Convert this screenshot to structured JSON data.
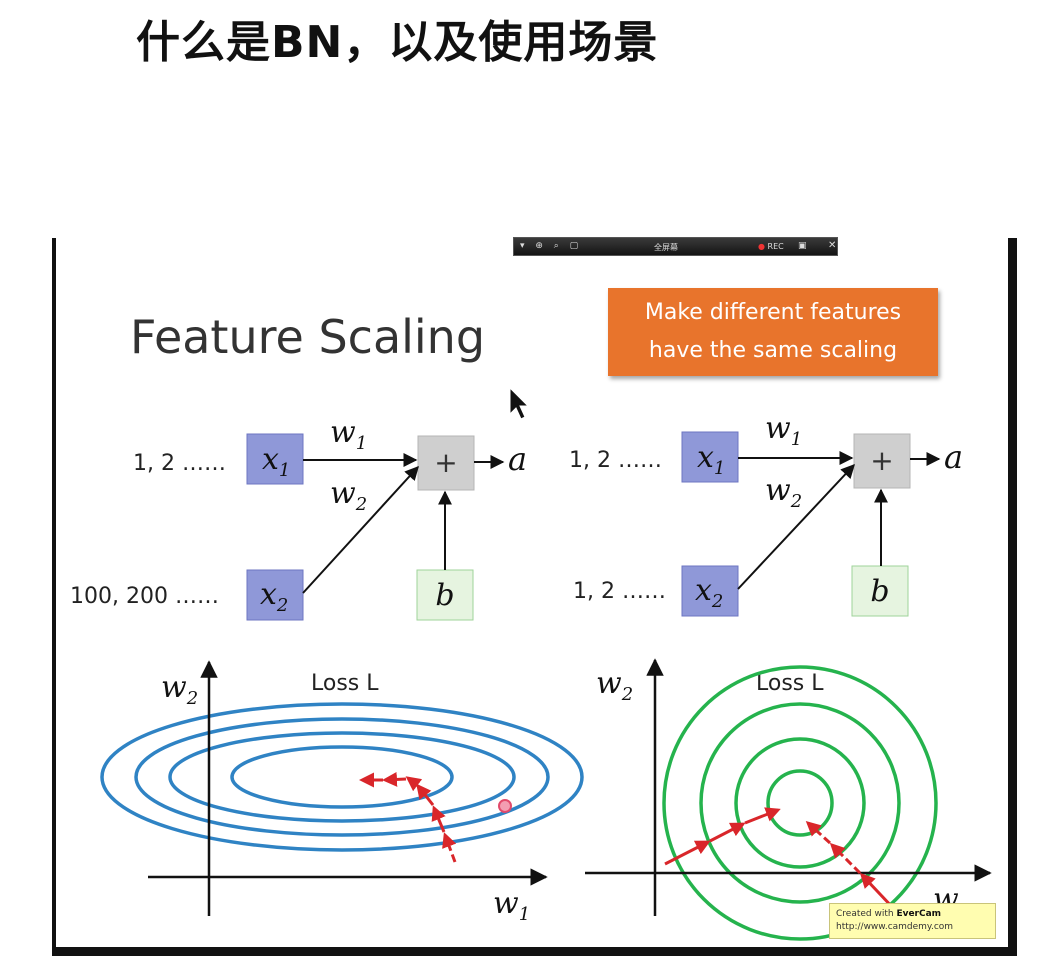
{
  "page": {
    "title": "什么是BN，以及使用场景"
  },
  "toolbar": {
    "icons": "▾ ⊕ ⌕ ▢",
    "mode_label": "全屏幕",
    "rec_dot": "●",
    "rec_label": "REC",
    "camera_icon": "camera-icon",
    "close_label": "✕"
  },
  "slide": {
    "title": "Feature Scaling",
    "callout_line1": "Make different features",
    "callout_line2": "have the same scaling"
  },
  "left_network": {
    "x1_series": "1, 2 ……",
    "x2_series": "100, 200 ……",
    "x1": "x",
    "x1_sub": "1",
    "x2": "x",
    "x2_sub": "2",
    "w1": "w",
    "w1_sub": "1",
    "w2": "w",
    "w2_sub": "2",
    "sum": "+",
    "bias": "b",
    "output": "a"
  },
  "right_network": {
    "x1_series": "1, 2 ……",
    "x2_series": "1, 2 ……",
    "x1": "x",
    "x1_sub": "1",
    "x2": "x",
    "x2_sub": "2",
    "w1": "w",
    "w1_sub": "1",
    "w2": "w",
    "w2_sub": "2",
    "sum": "+",
    "bias": "b",
    "output": "a"
  },
  "left_plot": {
    "loss_label": "Loss L",
    "y_axis": "w",
    "y_axis_sub": "2",
    "x_axis": "w",
    "x_axis_sub": "1"
  },
  "right_plot": {
    "loss_label": "Loss L",
    "y_axis": "w",
    "y_axis_sub": "2",
    "x_axis": "w"
  },
  "watermark": {
    "line1_prefix": "Created with ",
    "line1_brand": "EverCam",
    "line2": "http://www.camdemy.com"
  },
  "colors": {
    "input_box": "#8f98d8",
    "sum_box": "#cfcfcf",
    "bias_box": "#e6f4e0",
    "ellipse": "#2f83c4",
    "circle": "#25b34d",
    "arrow": "#d9262a",
    "callout": "#e8742c"
  }
}
